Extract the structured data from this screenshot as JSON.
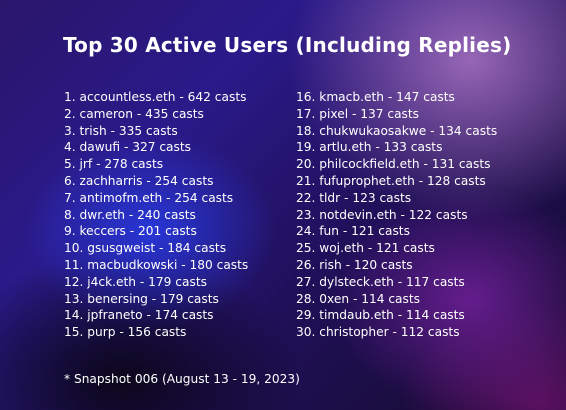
{
  "title": "Top 30 Active Users (Including Replies)",
  "users": [
    "1. accountless.eth - 642 casts",
    "2. cameron - 435 casts",
    "3. trish - 335 casts",
    "4. dawufi - 327 casts",
    "5. jrf - 278 casts",
    "6. zachharris - 254 casts",
    "7. antimofm.eth - 254 casts",
    "8. dwr.eth - 240 casts",
    "9. keccers - 201 casts",
    "10. gsusgweist - 184 casts",
    "11. macbudkowski - 180 casts",
    "12. j4ck.eth - 179 casts",
    "13. benersing - 179 casts",
    "14. jpfraneto - 174 casts",
    "15. purp - 156 casts",
    "16. kmacb.eth - 147 casts",
    "17. pixel - 137 casts",
    "18. chukwukaosakwe - 134 casts",
    "19. artlu.eth - 133 casts",
    "20. philcockfield.eth - 131 casts",
    "21. fufuprophet.eth - 128 casts",
    "22. tldr - 123 casts",
    "23. notdevin.eth - 122 casts",
    "24. fun - 121 casts",
    "25. woj.eth - 121 casts",
    "26. rish - 120 casts",
    "27. dylsteck.eth - 117 casts",
    "28. 0xen - 114 casts",
    "29. timdaub.eth - 114 casts",
    "30. christopher - 112 casts"
  ],
  "footnote": "* Snapshot 006 (August 13 - 19, 2023)",
  "colors": {
    "text": "#ffffff",
    "bg_deep": "#1a0f3a",
    "bg_blue": "#2a1a8a",
    "bg_pink": "#be82d2"
  }
}
